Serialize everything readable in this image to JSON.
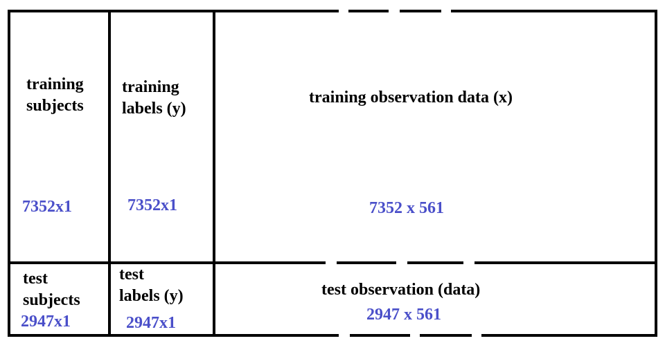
{
  "colors": {
    "border": "#000000",
    "label_text": "#000000",
    "dimension_text": "#4a4fc9",
    "background": "#ffffff"
  },
  "cells": {
    "training_subjects": {
      "title_line1": "training",
      "title_line2": "subjects",
      "dimension": "7352x1"
    },
    "training_labels": {
      "title_line1": "training",
      "title_line2": "labels (y)",
      "dimension": "7352x1"
    },
    "training_observation": {
      "title": "training observation data (x)",
      "dimension": "7352 x 561"
    },
    "test_subjects": {
      "title_line1": "test",
      "title_line2": "subjects",
      "dimension": "2947x1"
    },
    "test_labels": {
      "title_line1": "test",
      "title_line2": "labels (y)",
      "dimension": "2947x1"
    },
    "test_observation": {
      "title": "test observation (data)",
      "dimension": "2947 x 561"
    }
  }
}
